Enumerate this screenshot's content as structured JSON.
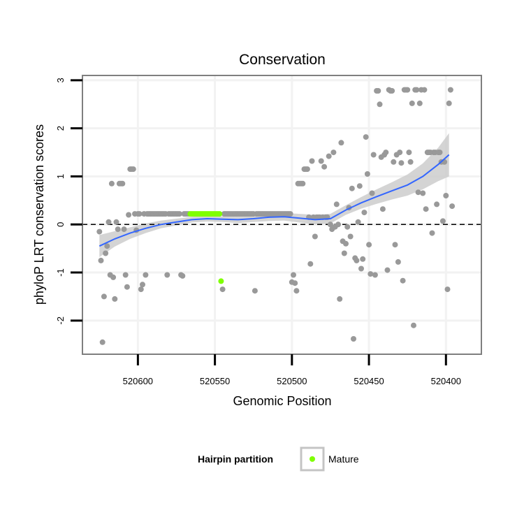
{
  "chart_data": {
    "type": "scatter",
    "title": "Conservation",
    "xlabel": "Genomic Position",
    "ylabel": "phyloP LRT conservation scores",
    "x_reversed": true,
    "xlim": [
      520377,
      520636
    ],
    "ylim": [
      -2.7,
      3.1
    ],
    "x_ticks": [
      520600,
      520550,
      520500,
      520450,
      520400
    ],
    "y_ticks": [
      -2,
      -1,
      0,
      1,
      2,
      3
    ],
    "grid": true,
    "reference_line": {
      "y": 0,
      "style": "dashed"
    },
    "colors": {
      "point": "#999999",
      "mature": "#7fff00",
      "smooth": "#3366ff",
      "ribbon": "#cccccc",
      "panel_border": "#7f7f7f",
      "grid": "#f2f2f2"
    },
    "legend": {
      "position": "bottom",
      "title": "Hairpin partition",
      "entries": [
        {
          "label": "Mature",
          "color": "#7fff00"
        }
      ]
    },
    "series": [
      {
        "name": "",
        "color": "#999999",
        "points": [
          [
            520625,
            -0.15
          ],
          [
            520624,
            -0.75
          ],
          [
            520623,
            -2.45
          ],
          [
            520622,
            -1.5
          ],
          [
            520621,
            -0.6
          ],
          [
            520620,
            -0.45
          ],
          [
            520619,
            0.05
          ],
          [
            520618,
            -1.05
          ],
          [
            520617,
            0.85
          ],
          [
            520616,
            -1.1
          ],
          [
            520615,
            -1.55
          ],
          [
            520614,
            0.05
          ],
          [
            520613,
            -0.1
          ],
          [
            520612,
            0.85
          ],
          [
            520611,
            0.85
          ],
          [
            520610,
            0.85
          ],
          [
            520609,
            -0.1
          ],
          [
            520608,
            -1.05
          ],
          [
            520607,
            -1.3
          ],
          [
            520606,
            0.2
          ],
          [
            520605,
            1.15
          ],
          [
            520604,
            1.15
          ],
          [
            520603,
            1.15
          ],
          [
            520602,
            0.22
          ],
          [
            520601,
            -0.12
          ],
          [
            520600,
            0.22
          ],
          [
            520599,
            0.22
          ],
          [
            520598,
            -1.35
          ],
          [
            520597,
            -1.25
          ],
          [
            520596,
            0.22
          ],
          [
            520595,
            -1.05
          ],
          [
            520594,
            0.22
          ],
          [
            520593,
            0.22
          ],
          [
            520592,
            0.22
          ],
          [
            520591,
            0.22
          ],
          [
            520590,
            0.22
          ],
          [
            520589,
            0.22
          ],
          [
            520588,
            0.22
          ],
          [
            520587,
            0.22
          ],
          [
            520586,
            0.22
          ],
          [
            520585,
            0.22
          ],
          [
            520584,
            0.22
          ],
          [
            520583,
            0.22
          ],
          [
            520582,
            0.22
          ],
          [
            520581,
            -1.05
          ],
          [
            520580,
            0.22
          ],
          [
            520579,
            0.22
          ],
          [
            520578,
            0.22
          ],
          [
            520577,
            0.22
          ],
          [
            520576,
            0.22
          ],
          [
            520575,
            0.22
          ],
          [
            520574,
            0.22
          ],
          [
            520573,
            0.22
          ],
          [
            520572,
            -1.05
          ],
          [
            520571,
            -1.07
          ],
          [
            520570,
            0.22
          ],
          [
            520569,
            0.22
          ],
          [
            520568,
            0.22
          ],
          [
            520567,
            0.22
          ],
          [
            520545,
            -1.35
          ],
          [
            520544,
            0.22
          ],
          [
            520543,
            0.22
          ],
          [
            520542,
            0.22
          ],
          [
            520541,
            0.22
          ],
          [
            520540,
            0.22
          ],
          [
            520539,
            0.22
          ],
          [
            520538,
            0.22
          ],
          [
            520537,
            0.22
          ],
          [
            520536,
            0.22
          ],
          [
            520535,
            0.22
          ],
          [
            520534,
            0.22
          ],
          [
            520533,
            0.22
          ],
          [
            520532,
            0.22
          ],
          [
            520531,
            0.22
          ],
          [
            520530,
            0.22
          ],
          [
            520529,
            0.22
          ],
          [
            520528,
            0.22
          ],
          [
            520527,
            0.22
          ],
          [
            520526,
            0.22
          ],
          [
            520525,
            0.22
          ],
          [
            520524,
            -1.38
          ],
          [
            520523,
            0.22
          ],
          [
            520522,
            0.22
          ],
          [
            520521,
            0.22
          ],
          [
            520520,
            0.22
          ],
          [
            520519,
            0.22
          ],
          [
            520518,
            0.22
          ],
          [
            520517,
            0.22
          ],
          [
            520516,
            0.22
          ],
          [
            520515,
            0.22
          ],
          [
            520514,
            0.22
          ],
          [
            520513,
            0.22
          ],
          [
            520512,
            0.22
          ],
          [
            520511,
            0.22
          ],
          [
            520510,
            0.22
          ],
          [
            520509,
            0.22
          ],
          [
            520508,
            0.22
          ],
          [
            520507,
            0.22
          ],
          [
            520506,
            0.22
          ],
          [
            520505,
            0.22
          ],
          [
            520504,
            0.22
          ],
          [
            520503,
            0.22
          ],
          [
            520502,
            0.22
          ],
          [
            520501,
            0.22
          ],
          [
            520500,
            -1.2
          ],
          [
            520499,
            -1.05
          ],
          [
            520498,
            -1.22
          ],
          [
            520497,
            -1.38
          ],
          [
            520496,
            0.85
          ],
          [
            520495,
            0.85
          ],
          [
            520494,
            0.85
          ],
          [
            520493,
            0.85
          ],
          [
            520492,
            1.15
          ],
          [
            520491,
            1.15
          ],
          [
            520490,
            1.15
          ],
          [
            520489,
            0.15
          ],
          [
            520488,
            -0.82
          ],
          [
            520487,
            1.32
          ],
          [
            520486,
            0.15
          ],
          [
            520485,
            -0.25
          ],
          [
            520484,
            0.15
          ],
          [
            520483,
            0.15
          ],
          [
            520482,
            0.15
          ],
          [
            520481,
            1.32
          ],
          [
            520480,
            0.15
          ],
          [
            520479,
            1.2
          ],
          [
            520478,
            0.15
          ],
          [
            520477,
            0.15
          ],
          [
            520476,
            1.42
          ],
          [
            520475,
            0.0
          ],
          [
            520474,
            -0.1
          ],
          [
            520473,
            1.5
          ],
          [
            520472,
            -0.05
          ],
          [
            520471,
            0.42
          ],
          [
            520470,
            0.0
          ],
          [
            520469,
            -1.55
          ],
          [
            520468,
            1.7
          ],
          [
            520467,
            -0.35
          ],
          [
            520466,
            -0.6
          ],
          [
            520465,
            -0.4
          ],
          [
            520464,
            -0.05
          ],
          [
            520463,
            0.35
          ],
          [
            520462,
            -0.25
          ],
          [
            520461,
            0.75
          ],
          [
            520460,
            -2.38
          ],
          [
            520459,
            -0.7
          ],
          [
            520458,
            -0.75
          ],
          [
            520457,
            0.05
          ],
          [
            520456,
            0.8
          ],
          [
            520455,
            -0.92
          ],
          [
            520454,
            -0.72
          ],
          [
            520453,
            0.25
          ],
          [
            520452,
            1.82
          ],
          [
            520451,
            1.05
          ],
          [
            520450,
            -0.42
          ],
          [
            520449,
            -1.03
          ],
          [
            520448,
            0.65
          ],
          [
            520447,
            1.45
          ],
          [
            520446,
            -1.05
          ],
          [
            520445,
            2.78
          ],
          [
            520444,
            2.78
          ],
          [
            520443,
            2.5
          ],
          [
            520442,
            1.4
          ],
          [
            520441,
            0.32
          ],
          [
            520440,
            1.45
          ],
          [
            520439,
            1.5
          ],
          [
            520438,
            -0.95
          ],
          [
            520437,
            2.8
          ],
          [
            520436,
            2.78
          ],
          [
            520435,
            2.78
          ],
          [
            520434,
            1.3
          ],
          [
            520433,
            -0.42
          ],
          [
            520432,
            1.45
          ],
          [
            520431,
            -0.78
          ],
          [
            520430,
            1.5
          ],
          [
            520429,
            1.28
          ],
          [
            520428,
            -1.17
          ],
          [
            520427,
            2.8
          ],
          [
            520426,
            2.8
          ],
          [
            520425,
            2.8
          ],
          [
            520424,
            1.5
          ],
          [
            520423,
            1.3
          ],
          [
            520422,
            2.52
          ],
          [
            520421,
            -2.1
          ],
          [
            520420,
            2.8
          ],
          [
            520419,
            2.8
          ],
          [
            520418,
            0.67
          ],
          [
            520417,
            2.52
          ],
          [
            520416,
            2.8
          ],
          [
            520415,
            0.65
          ],
          [
            520414,
            2.8
          ],
          [
            520413,
            0.32
          ],
          [
            520412,
            1.5
          ],
          [
            520411,
            1.5
          ],
          [
            520410,
            1.5
          ],
          [
            520409,
            -0.18
          ],
          [
            520408,
            1.5
          ],
          [
            520407,
            1.5
          ],
          [
            520406,
            0.42
          ],
          [
            520405,
            1.5
          ],
          [
            520404,
            1.5
          ],
          [
            520403,
            1.3
          ],
          [
            520402,
            0.07
          ],
          [
            520401,
            1.3
          ],
          [
            520400,
            0.6
          ],
          [
            520399,
            -1.35
          ],
          [
            520398,
            2.52
          ],
          [
            520397,
            2.8
          ],
          [
            520396,
            0.38
          ]
        ]
      },
      {
        "name": "Mature",
        "color": "#7fff00",
        "points": [
          [
            520566,
            0.22
          ],
          [
            520565,
            0.22
          ],
          [
            520564,
            0.22
          ],
          [
            520563,
            0.22
          ],
          [
            520562,
            0.22
          ],
          [
            520561,
            0.22
          ],
          [
            520560,
            0.22
          ],
          [
            520559,
            0.22
          ],
          [
            520558,
            0.22
          ],
          [
            520557,
            0.22
          ],
          [
            520556,
            0.22
          ],
          [
            520555,
            0.22
          ],
          [
            520554,
            0.22
          ],
          [
            520553,
            0.22
          ],
          [
            520552,
            0.22
          ],
          [
            520551,
            0.22
          ],
          [
            520550,
            0.22
          ],
          [
            520549,
            0.22
          ],
          [
            520548,
            0.22
          ],
          [
            520547,
            0.22
          ],
          [
            520546,
            -1.18
          ]
        ]
      }
    ],
    "smooth": {
      "x": [
        520625,
        520615,
        520605,
        520595,
        520585,
        520575,
        520565,
        520555,
        520545,
        520535,
        520525,
        520515,
        520505,
        520495,
        520485,
        520475,
        520465,
        520455,
        520445,
        520435,
        520425,
        520415,
        520405,
        520398
      ],
      "y": [
        -0.45,
        -0.3,
        -0.18,
        -0.08,
        0.0,
        0.05,
        0.1,
        0.12,
        0.11,
        0.1,
        0.12,
        0.15,
        0.16,
        0.13,
        0.1,
        0.12,
        0.3,
        0.45,
        0.58,
        0.7,
        0.82,
        1.0,
        1.25,
        1.45
      ],
      "lower": [
        -0.68,
        -0.46,
        -0.3,
        -0.18,
        -0.08,
        -0.02,
        0.04,
        0.06,
        0.05,
        0.03,
        0.05,
        0.07,
        0.08,
        0.04,
        0.0,
        0.02,
        0.2,
        0.33,
        0.43,
        0.52,
        0.6,
        0.73,
        0.9,
        1.0
      ],
      "upper": [
        -0.22,
        -0.14,
        -0.06,
        0.02,
        0.08,
        0.12,
        0.16,
        0.18,
        0.17,
        0.17,
        0.19,
        0.23,
        0.24,
        0.22,
        0.2,
        0.22,
        0.4,
        0.57,
        0.73,
        0.88,
        1.04,
        1.27,
        1.6,
        1.9
      ]
    }
  }
}
